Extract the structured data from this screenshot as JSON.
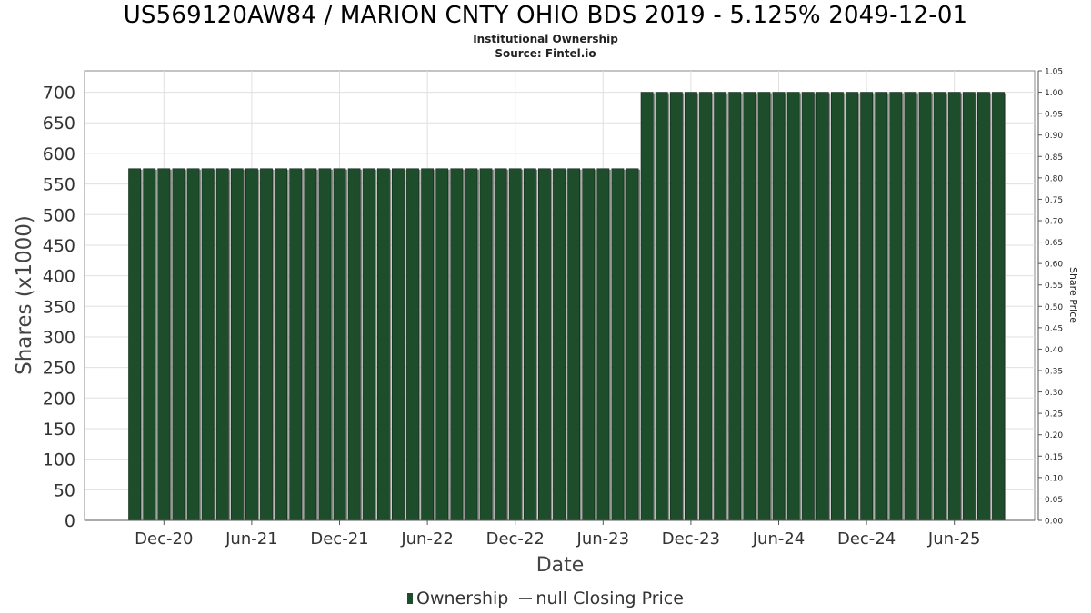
{
  "title": "US569120AW84 / MARION CNTY OHIO BDS 2019 - 5.125% 2049-12-01",
  "subtitle": "Institutional Ownership",
  "source": "Source: Fintel.io",
  "legend": {
    "ownership": "Ownership",
    "price": "null Closing Price"
  },
  "colors": {
    "bar": "#1e4d2b",
    "bar_shadow": "#8a8a8a",
    "grid": "#e0e0e0",
    "axis": "#888888"
  },
  "chart_data": {
    "type": "bar",
    "xlabel": "Date",
    "ylabel": "Shares (x1000)",
    "y2label": "Share Price",
    "ylim": [
      0,
      735
    ],
    "y2lim": [
      0,
      1.05
    ],
    "yticks": [
      0,
      50,
      100,
      150,
      200,
      250,
      300,
      350,
      400,
      450,
      500,
      550,
      600,
      650,
      700
    ],
    "y2ticks": [
      "0.00",
      "0.05",
      "0.10",
      "0.15",
      "0.20",
      "0.25",
      "0.30",
      "0.35",
      "0.40",
      "0.45",
      "0.50",
      "0.55",
      "0.60",
      "0.65",
      "0.70",
      "0.75",
      "0.80",
      "0.85",
      "0.90",
      "0.95",
      "1.00",
      "1.05"
    ],
    "xticks": [
      "Dec-20",
      "Jun-21",
      "Dec-21",
      "Jun-22",
      "Dec-22",
      "Jun-23",
      "Dec-23",
      "Jun-24",
      "Dec-24",
      "Jun-25"
    ],
    "grid": true,
    "legend_position": "bottom",
    "series": [
      {
        "name": "Ownership",
        "values": [
          575,
          575,
          575,
          575,
          575,
          575,
          575,
          575,
          575,
          575,
          575,
          575,
          575,
          575,
          575,
          575,
          575,
          575,
          575,
          575,
          575,
          575,
          575,
          575,
          575,
          575,
          575,
          575,
          575,
          575,
          575,
          575,
          575,
          575,
          575,
          700,
          700,
          700,
          700,
          700,
          700,
          700,
          700,
          700,
          700,
          700,
          700,
          700,
          700,
          700,
          700,
          700,
          700,
          700,
          700,
          700,
          700,
          700,
          700,
          700
        ]
      }
    ]
  }
}
